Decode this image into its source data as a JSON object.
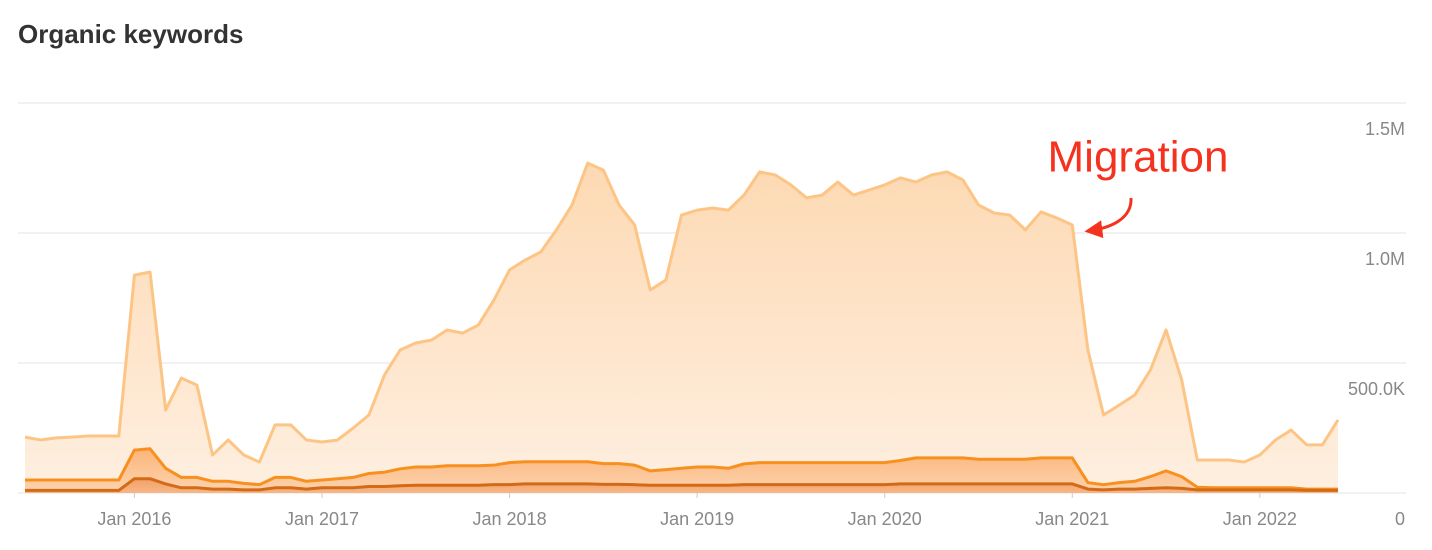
{
  "chart_data": {
    "type": "stacked-area",
    "title": "Organic keywords",
    "annotation": "Migration",
    "x": [
      "2015-06",
      "2015-07",
      "2015-08",
      "2015-09",
      "2015-10",
      "2015-11",
      "2015-12",
      "2016-01",
      "2016-02",
      "2016-03",
      "2016-04",
      "2016-05",
      "2016-06",
      "2016-07",
      "2016-08",
      "2016-09",
      "2016-10",
      "2016-11",
      "2016-12",
      "2017-01",
      "2017-02",
      "2017-03",
      "2017-04",
      "2017-05",
      "2017-06",
      "2017-07",
      "2017-08",
      "2017-09",
      "2017-10",
      "2017-11",
      "2017-12",
      "2018-01",
      "2018-02",
      "2018-03",
      "2018-04",
      "2018-05",
      "2018-06",
      "2018-07",
      "2018-08",
      "2018-09",
      "2018-10",
      "2018-11",
      "2018-12",
      "2019-01",
      "2019-02",
      "2019-03",
      "2019-04",
      "2019-05",
      "2019-06",
      "2019-07",
      "2019-08",
      "2019-09",
      "2019-10",
      "2019-11",
      "2019-12",
      "2020-01",
      "2020-02",
      "2020-03",
      "2020-04",
      "2020-05",
      "2020-06",
      "2020-07",
      "2020-08",
      "2020-09",
      "2020-10",
      "2020-11",
      "2020-12",
      "2021-01",
      "2021-02",
      "2021-03",
      "2021-04",
      "2021-05",
      "2021-06",
      "2021-07",
      "2021-08",
      "2021-09",
      "2021-10",
      "2021-11",
      "2021-12",
      "2022-01",
      "2022-02",
      "2022-03",
      "2022-04",
      "2022-05",
      "2022-06"
    ],
    "series": [
      {
        "color": "#d46a15",
        "values": [
          10000,
          10000,
          10000,
          10000,
          10000,
          10000,
          10000,
          55000,
          55000,
          35000,
          20000,
          20000,
          15000,
          15000,
          12000,
          12000,
          20000,
          20000,
          15000,
          20000,
          20000,
          20000,
          25000,
          25000,
          28000,
          30000,
          30000,
          30000,
          30000,
          30000,
          32000,
          32000,
          35000,
          35000,
          35000,
          35000,
          35000,
          33000,
          33000,
          32000,
          30000,
          30000,
          30000,
          30000,
          30000,
          30000,
          32000,
          32000,
          32000,
          32000,
          32000,
          32000,
          32000,
          32000,
          32000,
          32000,
          35000,
          35000,
          35000,
          35000,
          35000,
          35000,
          35000,
          35000,
          35000,
          35000,
          35000,
          35000,
          15000,
          12000,
          15000,
          15000,
          18000,
          20000,
          18000,
          12000,
          12000,
          12000,
          12000,
          12000,
          12000,
          12000,
          10000,
          10000,
          10000
        ]
      },
      {
        "color": "#f7901e",
        "values": [
          40000,
          40000,
          40000,
          40000,
          40000,
          40000,
          40000,
          110000,
          115000,
          60000,
          40000,
          40000,
          30000,
          30000,
          25000,
          20000,
          40000,
          40000,
          30000,
          30000,
          35000,
          40000,
          50000,
          55000,
          65000,
          70000,
          70000,
          75000,
          75000,
          75000,
          75000,
          85000,
          85000,
          85000,
          85000,
          85000,
          85000,
          80000,
          80000,
          75000,
          55000,
          60000,
          65000,
          70000,
          70000,
          65000,
          80000,
          85000,
          85000,
          85000,
          85000,
          85000,
          85000,
          85000,
          85000,
          85000,
          90000,
          100000,
          100000,
          100000,
          100000,
          95000,
          95000,
          95000,
          95000,
          100000,
          100000,
          100000,
          25000,
          20000,
          25000,
          30000,
          45000,
          65000,
          45000,
          10000,
          8000,
          8000,
          8000,
          8000,
          8000,
          8000,
          5000,
          5000,
          5000
        ]
      },
      {
        "color": "#fdc585",
        "values": [
          165000,
          154000,
          162000,
          165000,
          169000,
          169000,
          169000,
          673000,
          680000,
          224000,
          382000,
          355000,
          101000,
          159000,
          109000,
          87000,
          202000,
          202000,
          159000,
          146000,
          149000,
          190000,
          225000,
          374000,
          457000,
          477000,
          488000,
          522000,
          510000,
          541000,
          635000,
          741000,
          776000,
          807000,
          892000,
          988000,
          1149000,
          1129000,
          995000,
          924000,
          696000,
          729000,
          974000,
          988000,
          996000,
          993000,
          1034000,
          1118000,
          1106000,
          1068000,
          1018000,
          1029000,
          1079000,
          1029000,
          1048000,
          1068000,
          1087000,
          1061000,
          1088000,
          1100000,
          1069000,
          978000,
          947000,
          939000,
          882000,
          946000,
          923000,
          896000,
          510000,
          268000,
          298000,
          332000,
          410000,
          542000,
          372000,
          105000,
          107000,
          107000,
          99000,
          126000,
          184000,
          222000,
          170000,
          170000,
          266000
        ]
      }
    ],
    "xticks": [
      {
        "value": "2016-01",
        "label": "Jan 2016"
      },
      {
        "value": "2017-01",
        "label": "Jan 2017"
      },
      {
        "value": "2018-01",
        "label": "Jan 2018"
      },
      {
        "value": "2019-01",
        "label": "Jan 2019"
      },
      {
        "value": "2020-01",
        "label": "Jan 2020"
      },
      {
        "value": "2021-01",
        "label": "Jan 2021"
      },
      {
        "value": "2022-01",
        "label": "Jan 2022"
      }
    ],
    "ylim": [
      0,
      1500000
    ],
    "yticks": [
      0,
      {
        "value": 500000,
        "label": "500.0K"
      },
      {
        "value": 1000000,
        "label": "1.0M"
      },
      {
        "value": 1500000,
        "label": "1.5M"
      }
    ],
    "grid": true
  }
}
